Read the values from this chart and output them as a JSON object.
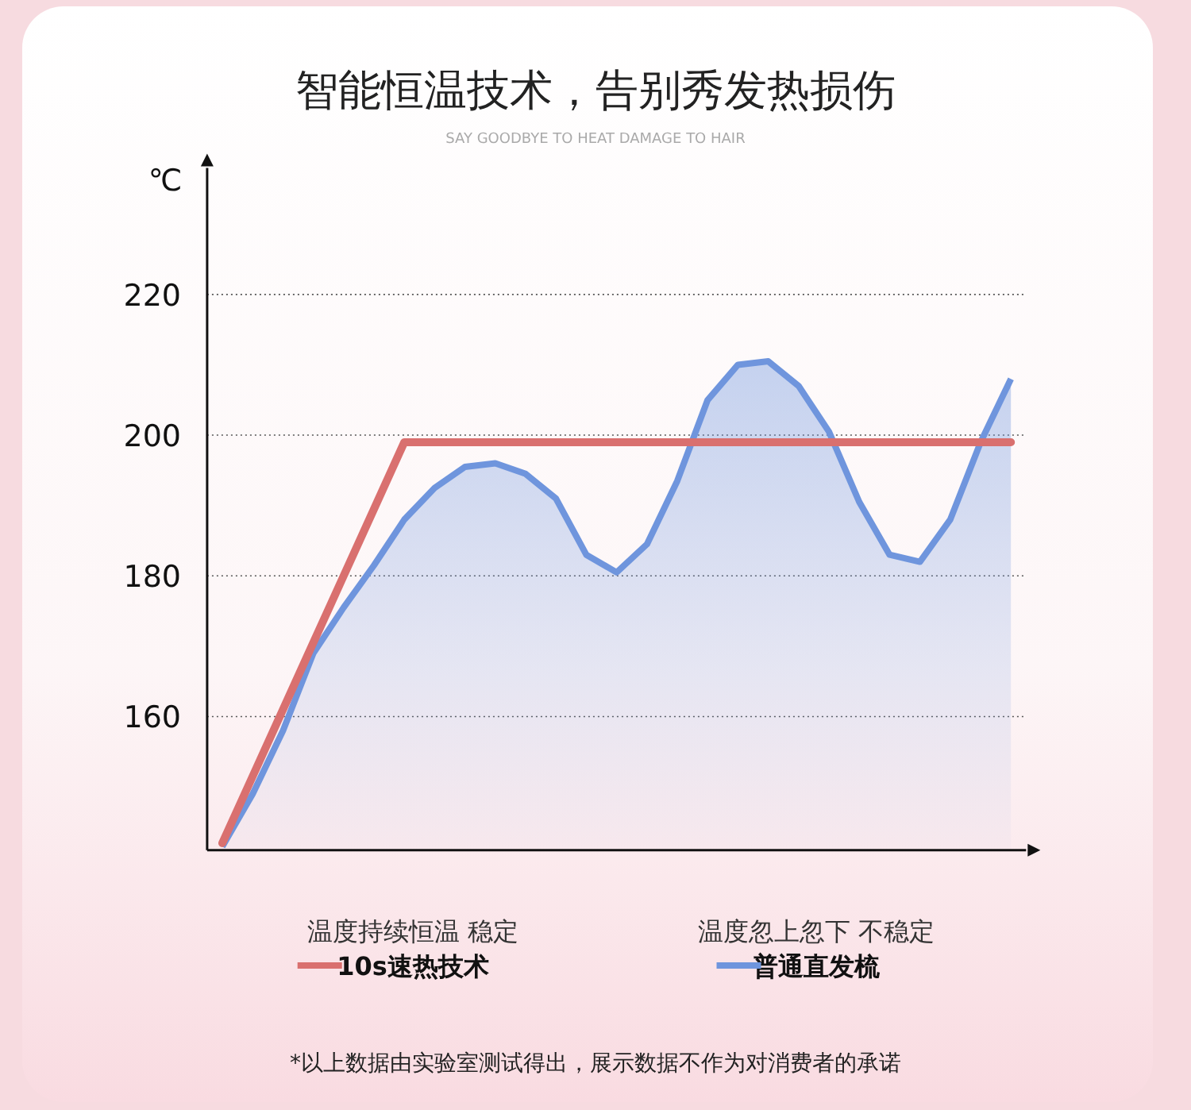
{
  "chart_data": {
    "type": "line",
    "title": "智能恒温技术，告别秀发热损伤",
    "subtitle": "SAY GOODBYE TO HEAT DAMAGE TO HAIR",
    "ylabel": "℃",
    "annotations": [
      "温度持续恒温 稳定",
      "温度忽上忽下 不稳定",
      "*以上数据由实验室测试得出，展示数据不作为对消费者的承诺"
    ],
    "categories": [
      null,
      null,
      null,
      null,
      null,
      null,
      null,
      null,
      null,
      null,
      null,
      null,
      null,
      null,
      null,
      null,
      null,
      null,
      null,
      null,
      null,
      null,
      null,
      null,
      null,
      null,
      null
    ],
    "series": [
      {
        "name": "10s速热技术",
        "type": "line",
        "color": "#d9706f",
        "values": [
          142,
          151.5,
          161,
          170.5,
          180,
          189.5,
          199,
          199,
          199,
          199,
          199,
          199,
          199,
          199,
          199,
          199,
          199,
          199,
          199,
          199,
          199,
          199,
          199,
          199,
          199,
          199,
          199
        ]
      },
      {
        "name": "普通直发梳",
        "type": "area",
        "color": "#6f95dd",
        "values": [
          141.5,
          149,
          158,
          169,
          175.5,
          181.5,
          188,
          192.5,
          195.5,
          196,
          194.5,
          191,
          183,
          180.5,
          184.5,
          193.5,
          205,
          210,
          210.5,
          207,
          200.5,
          190.5,
          183,
          182,
          188,
          199,
          208
        ]
      }
    ],
    "ylim": [
      141,
      238
    ],
    "yticks": [
      160,
      180,
      200,
      220
    ],
    "grid": "y",
    "legend": "bottom",
    "marker": "none",
    "line_style": "solid"
  }
}
